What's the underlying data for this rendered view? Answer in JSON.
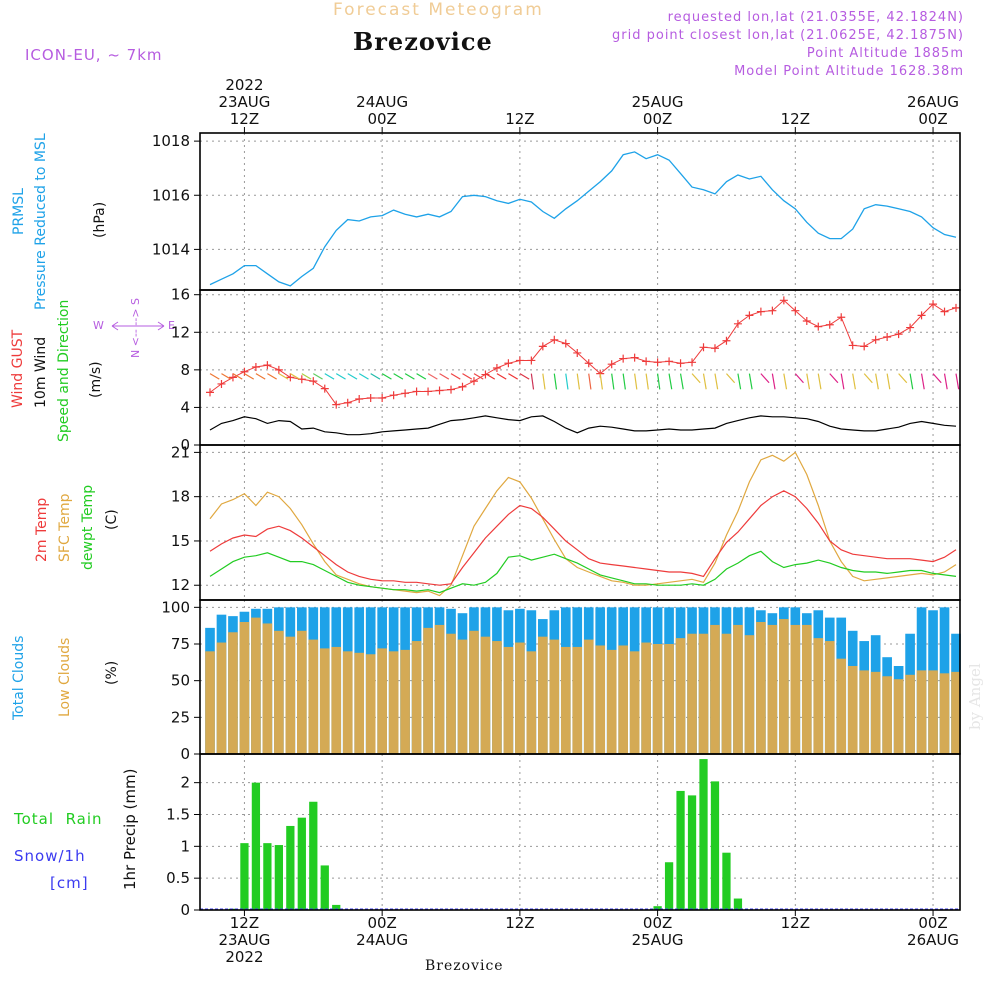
{
  "header": {
    "faint_title": "Forecast Meteogram",
    "location": "Brezovice",
    "model": "ICON-EU, ~ 7km",
    "requested": "requested lon,lat (21.0355E, 42.1824N)",
    "gridpoint": "grid point closest lon,lat (21.0625E, 42.1875N)",
    "point_altitude": "Point Altitude 1885m",
    "model_altitude": "Model Point Altitude 1628.38m"
  },
  "time_axis": {
    "top_labels": [
      {
        "lines": [
          "2022",
          "23AUG",
          "12Z"
        ]
      },
      {
        "lines": [
          "24AUG",
          "00Z"
        ]
      },
      {
        "lines": [
          "12Z"
        ]
      },
      {
        "lines": [
          "25AUG",
          "00Z"
        ]
      },
      {
        "lines": [
          "12Z"
        ]
      },
      {
        "lines": [
          "26AUG",
          "00Z"
        ]
      }
    ],
    "bottom_labels": [
      {
        "lines": [
          "12Z",
          "23AUG",
          "2022"
        ]
      },
      {
        "lines": [
          "00Z",
          "24AUG"
        ]
      },
      {
        "lines": [
          "12Z"
        ]
      },
      {
        "lines": [
          "00Z",
          "25AUG"
        ]
      },
      {
        "lines": [
          "12Z"
        ]
      },
      {
        "lines": [
          "00Z",
          "26AUG"
        ]
      }
    ]
  },
  "panel_labels": {
    "pressure": {
      "line1": "PRMSL",
      "line2": "Pressure Reduced to MSL",
      "unit": "(hPa)"
    },
    "wind": {
      "gust": "Wind GUST",
      "wind10m": "10m Wind",
      "speed_dir": "Speed and Direction",
      "unit": "(m/s)",
      "compass_w": "W",
      "compass_e": "E",
      "compass_ns": "N <-- --> S"
    },
    "temp": {
      "t2m": "2m Temp",
      "sfc": "SFC Temp",
      "dewpt": "dewpt Temp",
      "unit": "(C)"
    },
    "clouds": {
      "total": "Total Clouds",
      "low": "Low Clouds",
      "unit": "(%)"
    },
    "precip": {
      "rain": "Total  Rain",
      "snow": "Snow/1h",
      "snow_unit": "[cm]",
      "ylabel": "1hr Precip (mm)"
    }
  },
  "watermark": "by Angel",
  "footer_location": "Brezovice",
  "colors": {
    "pressure": "#1ea2e8",
    "gust": "#ee3b3b",
    "wind": "#000000",
    "t2m": "#ee3b3b",
    "sfc": "#e0a840",
    "dewpt": "#22cc22",
    "cloud_total": "#1ea2e8",
    "cloud_low": "#d4aa55",
    "rain": "#22cc22",
    "header_purple": "#b65ce0",
    "label_cyan": "#1ea2e8",
    "label_green": "#22cc22",
    "label_red": "#ee3b3b",
    "label_orange": "#e0a840",
    "label_blue": "#3a3af0"
  },
  "chart_data": [
    {
      "type": "line",
      "title": "PRMSL Pressure Reduced to MSL",
      "ylabel": "(hPa)",
      "ylim": [
        1012.5,
        1018.3
      ],
      "yticks": [
        "1014",
        "1016",
        "1018"
      ],
      "ytick_values": [
        1014,
        1016,
        1018
      ],
      "x_hours_from_start": [
        0,
        1,
        2,
        3,
        4,
        5,
        6,
        7,
        8,
        9,
        10,
        11,
        12,
        13,
        14,
        15,
        16,
        17,
        18,
        19,
        20,
        21,
        22,
        23,
        24,
        25,
        26,
        27,
        28,
        29,
        30,
        31,
        32,
        33,
        34,
        35,
        36,
        37,
        38,
        39,
        40,
        41,
        42,
        43,
        44,
        45,
        46,
        47,
        48,
        49,
        50,
        51,
        52,
        53,
        54,
        55,
        56,
        57,
        58,
        59,
        60,
        61,
        62,
        63,
        64,
        65
      ],
      "series": [
        {
          "name": "PRMSL",
          "values": [
            1012.7,
            1012.9,
            1013.1,
            1013.4,
            1013.4,
            1013.1,
            1012.8,
            1012.65,
            1013.0,
            1013.3,
            1014.1,
            1014.7,
            1015.1,
            1015.05,
            1015.2,
            1015.25,
            1015.45,
            1015.3,
            1015.2,
            1015.3,
            1015.2,
            1015.4,
            1015.95,
            1016.0,
            1015.95,
            1015.8,
            1015.7,
            1015.85,
            1015.75,
            1015.4,
            1015.15,
            1015.5,
            1015.8,
            1016.15,
            1016.5,
            1016.9,
            1017.5,
            1017.6,
            1017.35,
            1017.5,
            1017.3,
            1016.8,
            1016.3,
            1016.2,
            1016.05,
            1016.5,
            1016.75,
            1016.6,
            1016.7,
            1016.2,
            1015.8,
            1015.5,
            1015.0,
            1014.6,
            1014.4,
            1014.4,
            1014.75,
            1015.5,
            1015.65,
            1015.6,
            1015.5,
            1015.4,
            1015.2,
            1014.8,
            1014.55,
            1014.45
          ]
        }
      ]
    },
    {
      "type": "line",
      "title": "Wind GUST / 10m Wind Speed and Direction",
      "ylabel": "(m/s)",
      "ylim": [
        0,
        16.5
      ],
      "yticks": [
        "0",
        "4",
        "8",
        "12",
        "16"
      ],
      "ytick_values": [
        0,
        4,
        8,
        12,
        16
      ],
      "series": [
        {
          "name": "Wind GUST",
          "values": [
            5.6,
            6.5,
            7.2,
            7.8,
            8.3,
            8.5,
            8.0,
            7.2,
            7.0,
            6.8,
            6.0,
            4.3,
            4.5,
            4.9,
            5.0,
            5.0,
            5.3,
            5.5,
            5.7,
            5.7,
            5.8,
            5.9,
            6.2,
            6.8,
            7.5,
            8.2,
            8.7,
            9.0,
            9.0,
            10.5,
            11.2,
            10.8,
            9.8,
            8.7,
            7.6,
            8.6,
            9.2,
            9.3,
            8.9,
            8.8,
            8.9,
            8.7,
            8.8,
            10.4,
            10.3,
            11.1,
            12.9,
            13.8,
            14.2,
            14.3,
            15.4,
            14.3,
            13.2,
            12.6,
            12.8,
            13.6,
            10.6,
            10.5,
            11.2,
            11.5,
            11.8,
            12.5,
            13.8,
            15.0,
            14.2,
            14.6
          ]
        },
        {
          "name": "10m Wind",
          "values": [
            1.6,
            2.3,
            2.6,
            3.0,
            2.8,
            2.3,
            2.6,
            2.5,
            1.7,
            1.8,
            1.4,
            1.3,
            1.1,
            1.1,
            1.2,
            1.4,
            1.5,
            1.6,
            1.7,
            1.8,
            2.2,
            2.6,
            2.7,
            2.9,
            3.1,
            2.9,
            2.7,
            2.6,
            3.0,
            3.1,
            2.5,
            1.8,
            1.3,
            1.8,
            2.0,
            1.9,
            1.7,
            1.5,
            1.5,
            1.6,
            1.7,
            1.6,
            1.6,
            1.7,
            1.8,
            2.3,
            2.6,
            2.9,
            3.1,
            3.0,
            3.0,
            2.9,
            2.8,
            2.5,
            2.0,
            1.7,
            1.6,
            1.5,
            1.5,
            1.7,
            1.9,
            2.3,
            2.5,
            2.3,
            2.1,
            2.0
          ]
        }
      ],
      "wind_direction_note": "Arrow glyphs along 7.5 m/s show wind direction; colours encode speed."
    },
    {
      "type": "line",
      "title": "2m Temp / SFC Temp / dewpt Temp",
      "ylabel": "(C)",
      "ylim": [
        11.0,
        21.5
      ],
      "yticks": [
        "12",
        "15",
        "18",
        "21"
      ],
      "ytick_values": [
        12,
        15,
        18,
        21
      ],
      "series": [
        {
          "name": "2m Temp",
          "values": [
            14.3,
            14.8,
            15.2,
            15.4,
            15.3,
            15.8,
            16.0,
            15.7,
            15.2,
            14.6,
            14.0,
            13.4,
            12.9,
            12.6,
            12.4,
            12.3,
            12.3,
            12.2,
            12.2,
            12.1,
            12.0,
            12.1,
            13.2,
            14.2,
            15.2,
            16.0,
            16.8,
            17.4,
            17.2,
            16.6,
            15.8,
            15.0,
            14.4,
            13.8,
            13.5,
            13.4,
            13.3,
            13.2,
            13.1,
            13.0,
            12.9,
            12.9,
            12.8,
            12.6,
            13.8,
            14.9,
            15.6,
            16.5,
            17.4,
            18.0,
            18.4,
            18.0,
            17.2,
            16.2,
            15.0,
            14.4,
            14.1,
            14.0,
            13.9,
            13.8,
            13.8,
            13.8,
            13.7,
            13.6,
            13.9,
            14.4
          ]
        },
        {
          "name": "SFC Temp",
          "values": [
            16.5,
            17.5,
            17.8,
            18.2,
            17.4,
            18.3,
            18.0,
            17.2,
            16.1,
            14.8,
            13.6,
            12.7,
            12.4,
            12.1,
            11.9,
            11.8,
            11.7,
            11.6,
            11.5,
            11.6,
            11.3,
            12.0,
            14.0,
            16.0,
            17.2,
            18.4,
            19.3,
            19.0,
            17.9,
            16.5,
            15.1,
            13.8,
            13.2,
            12.9,
            12.6,
            12.3,
            12.2,
            12.0,
            12.0,
            12.1,
            12.2,
            12.3,
            12.4,
            12.2,
            13.5,
            15.4,
            17.0,
            19.0,
            20.5,
            20.8,
            20.4,
            21.0,
            19.5,
            17.4,
            15.0,
            13.6,
            12.6,
            12.3,
            12.4,
            12.5,
            12.6,
            12.7,
            12.8,
            12.7,
            12.9,
            13.4
          ]
        },
        {
          "name": "dewpt Temp",
          "values": [
            12.6,
            13.1,
            13.6,
            13.9,
            14.0,
            14.2,
            13.9,
            13.6,
            13.6,
            13.4,
            13.0,
            12.6,
            12.2,
            12.0,
            11.9,
            11.8,
            11.7,
            11.7,
            11.6,
            11.7,
            11.5,
            11.8,
            12.1,
            12.0,
            12.2,
            12.8,
            13.9,
            14.0,
            13.7,
            13.9,
            14.1,
            13.8,
            13.5,
            13.1,
            12.7,
            12.5,
            12.3,
            12.1,
            12.1,
            12.0,
            12.0,
            12.0,
            12.1,
            12.0,
            12.4,
            13.1,
            13.5,
            14.0,
            14.3,
            13.6,
            13.2,
            13.4,
            13.5,
            13.7,
            13.5,
            13.2,
            13.0,
            12.9,
            12.9,
            12.8,
            12.9,
            13.0,
            13.0,
            12.8,
            12.7,
            12.6
          ]
        }
      ]
    },
    {
      "type": "bar",
      "title": "Total Clouds / Low Clouds",
      "ylabel": "(%)",
      "ylim": [
        0,
        105
      ],
      "yticks": [
        "0",
        "25",
        "50",
        "75",
        "100"
      ],
      "ytick_values": [
        0,
        25,
        50,
        75,
        100
      ],
      "series": [
        {
          "name": "Total Clouds",
          "values": [
            86,
            95,
            94,
            97,
            99,
            99,
            100,
            100,
            100,
            100,
            100,
            100,
            100,
            100,
            100,
            100,
            100,
            100,
            100,
            100,
            100,
            99,
            96,
            100,
            100,
            100,
            98,
            99,
            98,
            92,
            98,
            100,
            100,
            100,
            100,
            100,
            100,
            100,
            100,
            100,
            100,
            100,
            100,
            100,
            100,
            100,
            100,
            100,
            98,
            96,
            100,
            100,
            96,
            98,
            93,
            93,
            84,
            77,
            81,
            66,
            60,
            82,
            100,
            98,
            100,
            82
          ]
        },
        {
          "name": "Low Clouds",
          "values": [
            70,
            76,
            83,
            90,
            93,
            89,
            84,
            80,
            84,
            78,
            72,
            73,
            70,
            69,
            68,
            72,
            70,
            71,
            77,
            86,
            88,
            82,
            78,
            84,
            80,
            77,
            73,
            76,
            70,
            80,
            78,
            73,
            73,
            78,
            74,
            71,
            74,
            70,
            76,
            75,
            75,
            79,
            82,
            82,
            88,
            82,
            88,
            81,
            90,
            88,
            92,
            88,
            88,
            79,
            77,
            65,
            60,
            57,
            56,
            53,
            51,
            54,
            57,
            57,
            55,
            56
          ]
        }
      ]
    },
    {
      "type": "bar",
      "title": "Total Rain / Snow 1h",
      "ylabel": "1hr Precip (mm)",
      "ylim": [
        0,
        2.45
      ],
      "yticks": [
        "0",
        "0.5",
        "1",
        "1.5",
        "2"
      ],
      "ytick_values": [
        0,
        0.5,
        1,
        1.5,
        2
      ],
      "series": [
        {
          "name": "Total Rain",
          "values": [
            0,
            0,
            0.02,
            1.05,
            2.0,
            1.05,
            1.02,
            1.32,
            1.45,
            1.7,
            0.7,
            0.08,
            0,
            0,
            0,
            0,
            0,
            0,
            0,
            0,
            0,
            0,
            0,
            0,
            0,
            0,
            0,
            0,
            0,
            0,
            0,
            0,
            0,
            0,
            0,
            0,
            0,
            0,
            0,
            0.06,
            0.75,
            1.87,
            1.8,
            2.37,
            2.02,
            0.9,
            0.18,
            0,
            0,
            0,
            0,
            0,
            0,
            0,
            0,
            0,
            0,
            0,
            0,
            0,
            0,
            0,
            0,
            0,
            0,
            0
          ]
        }
      ]
    }
  ]
}
